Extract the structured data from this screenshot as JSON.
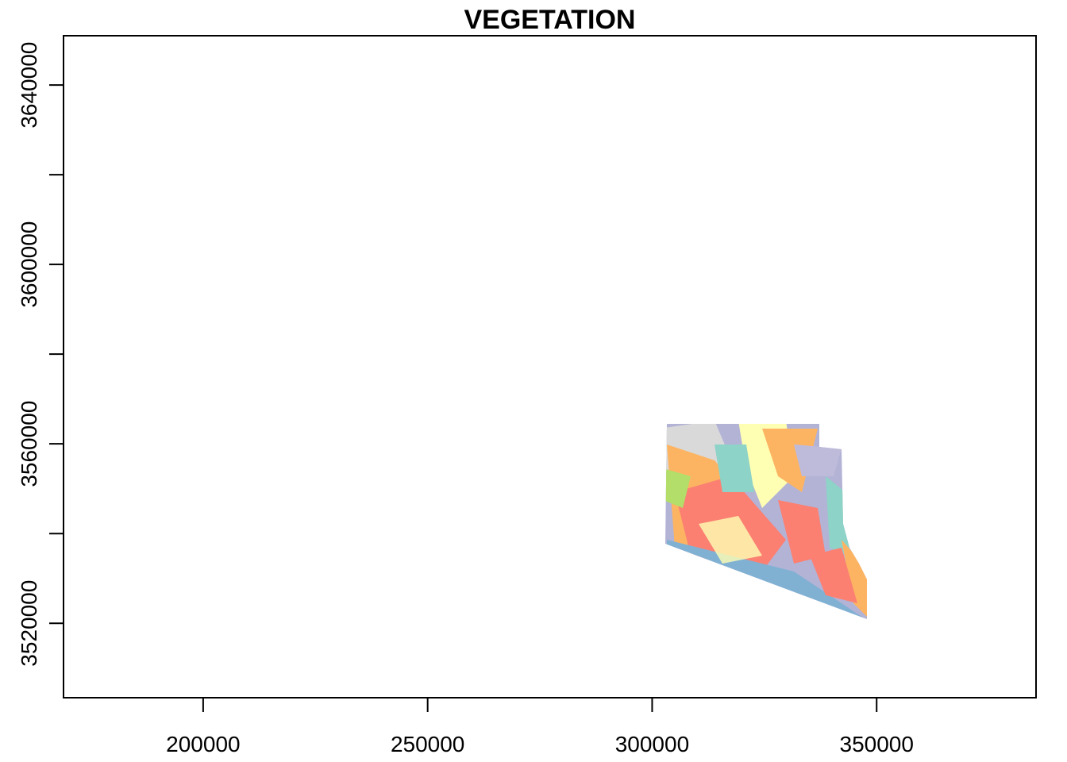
{
  "chart_data": {
    "type": "map",
    "title": "VEGETATION",
    "xlim": [
      168900,
      385500
    ],
    "xticks": [
      200000,
      250000,
      300000,
      350000
    ],
    "ylim": [
      3503400,
      3651000
    ],
    "yticks": [
      3520000,
      3560000,
      3600000,
      3640000
    ],
    "yticks_minor": [
      3540000,
      3580000,
      3620000
    ]
  }
}
